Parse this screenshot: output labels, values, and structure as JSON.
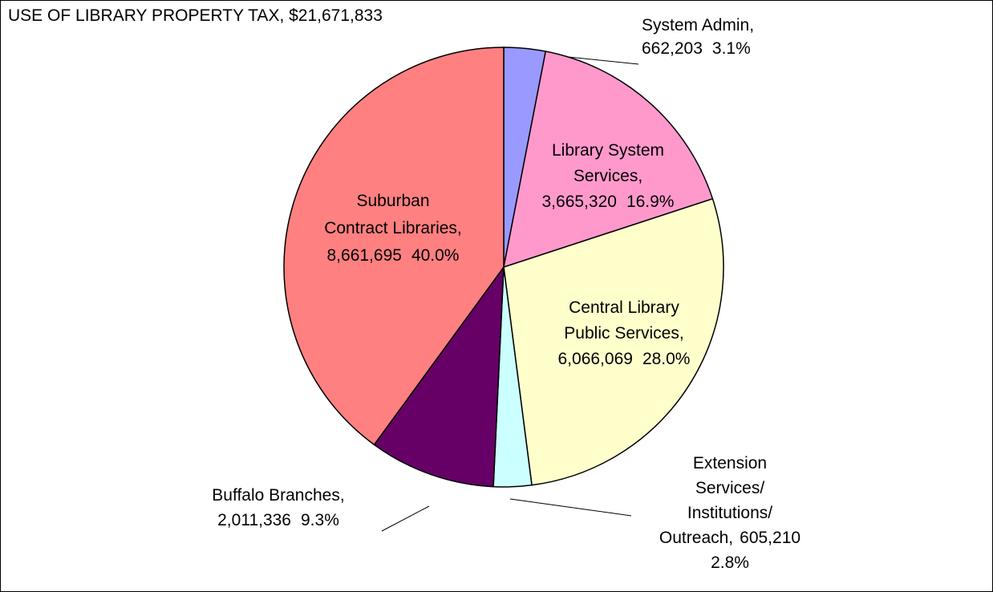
{
  "chart_data": {
    "type": "pie",
    "title": "USE OF LIBRARY PROPERTY TAX, $21,671,833",
    "categories": [
      [
        "System Admin,"
      ],
      [
        "Library System",
        "Services,"
      ],
      [
        "Central Library",
        "Public Services,"
      ],
      [
        "Extension",
        "Services/",
        "Institutions/",
        "Outreach,"
      ],
      [
        "Buffalo Branches,"
      ],
      [
        "Suburban",
        "Contract Libraries,"
      ]
    ],
    "values": [
      662203,
      3665320,
      6066069,
      605210,
      2011336,
      8661695
    ],
    "value_labels": [
      "662,203",
      "3,665,320",
      "6,066,069",
      "605,210",
      "2,011,336",
      "8,661,695"
    ],
    "percents": [
      3.1,
      16.9,
      28.0,
      2.8,
      9.3,
      40.0
    ],
    "percent_labels": [
      "3.1%",
      "16.9%",
      "28.0%",
      "2.8%",
      "9.3%",
      "40.0%"
    ],
    "colors": [
      "#9999ff",
      "#ff99cc",
      "#ffffcc",
      "#ccffff",
      "#660066",
      "#ff8080"
    ]
  }
}
